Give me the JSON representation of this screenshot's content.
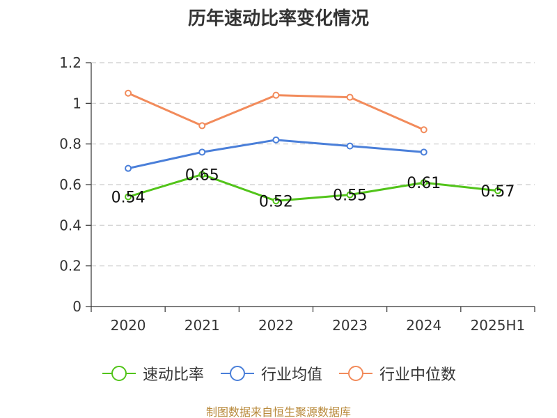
{
  "chart_data": {
    "type": "line",
    "title": "历年速动比率变化情况",
    "categories": [
      "2020",
      "2021",
      "2022",
      "2023",
      "2024",
      "2025H1"
    ],
    "ylim": [
      0,
      1.2
    ],
    "yticks": [
      "0",
      "0.2",
      "0.4",
      "0.6",
      "0.8",
      "1",
      "1.2"
    ],
    "grid": true,
    "legend_position": "bottom",
    "series": [
      {
        "name": "速动比率",
        "color": "#52c41a",
        "values": [
          0.54,
          0.65,
          0.52,
          0.55,
          0.61,
          0.57
        ],
        "labels": [
          "0.54",
          "0.65",
          "0.52",
          "0.55",
          "0.61",
          "0.57"
        ]
      },
      {
        "name": "行业均值",
        "color": "#4a7fd9",
        "values": [
          0.68,
          0.76,
          0.82,
          0.79,
          0.76,
          null
        ]
      },
      {
        "name": "行业中位数",
        "color": "#f28b5b",
        "values": [
          1.05,
          0.89,
          1.04,
          1.03,
          0.87,
          null
        ]
      }
    ]
  },
  "footer": "制图数据来自恒生聚源数据库"
}
